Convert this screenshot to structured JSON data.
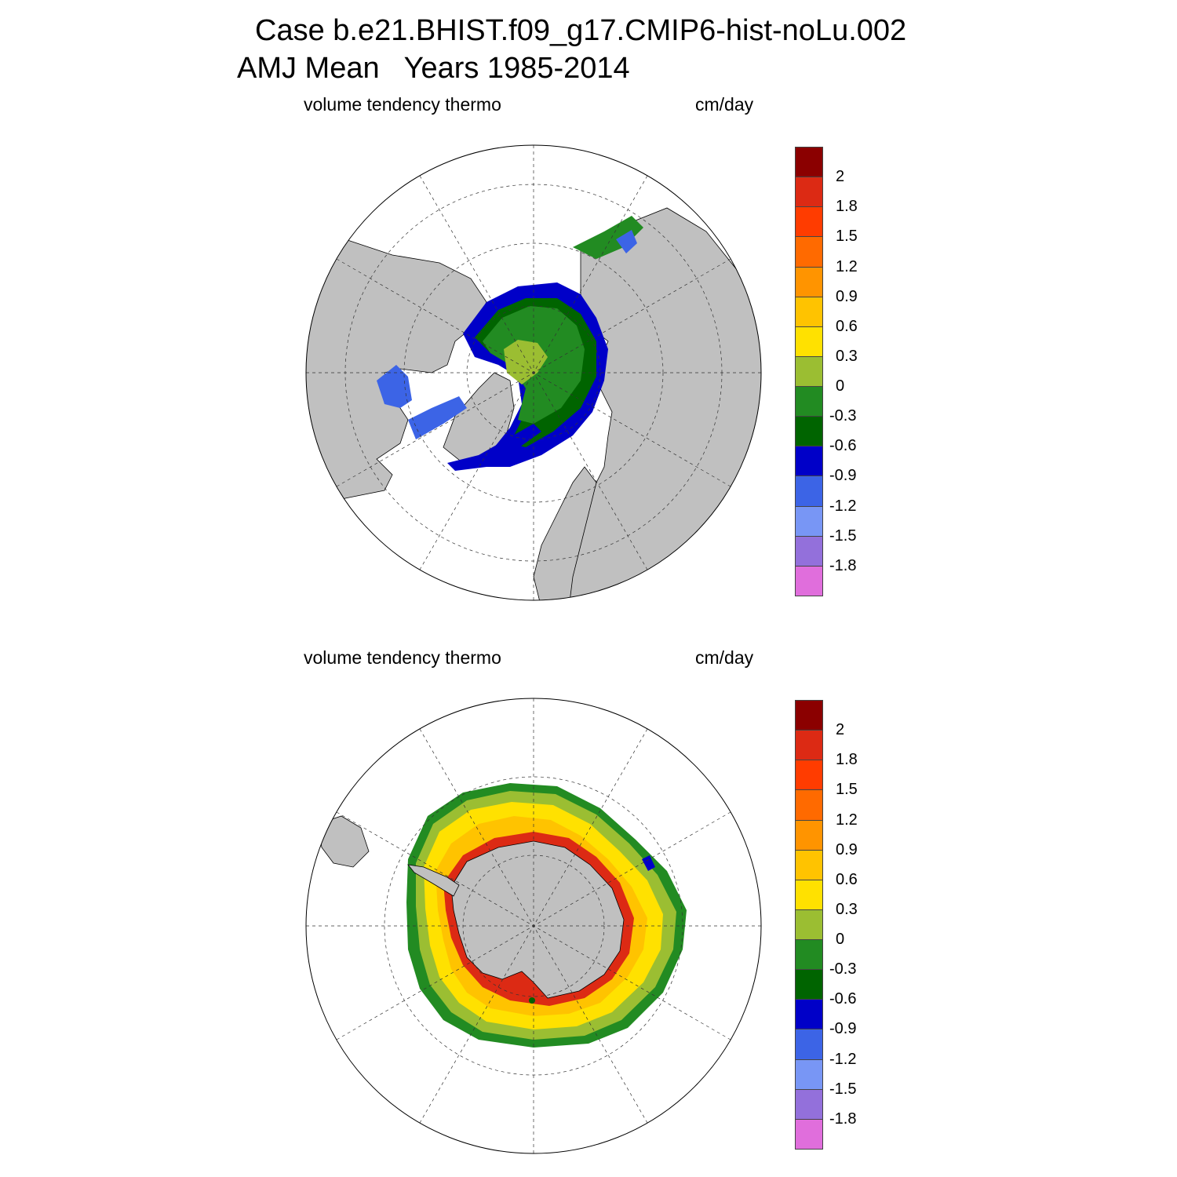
{
  "title_line1": "Case b.e21.BHIST.f09_g17.CMIP6-hist-noLu.002",
  "title_line2": "AMJ Mean   Years 1985-2014",
  "panels": [
    {
      "name": "arctic",
      "left_label": "volume tendency thermo",
      "right_label": "cm/day",
      "hemisphere": "north",
      "land_color": "#c0c0c0",
      "ocean_color": "#ffffff"
    },
    {
      "name": "antarctic",
      "left_label": "volume tendency thermo",
      "right_label": "cm/day",
      "hemisphere": "south",
      "land_color": "#c0c0c0",
      "ocean_color": "#ffffff"
    }
  ],
  "colorbar": {
    "colors_top_to_bottom": [
      "#8b0000",
      "#dc2a14",
      "#ff3c00",
      "#ff6a00",
      "#ff9400",
      "#ffc300",
      "#ffe100",
      "#9bbe32",
      "#228b22",
      "#006400",
      "#0000c8",
      "#3c64e6",
      "#7896f5",
      "#9370db",
      "#e06edc"
    ],
    "labels": [
      "2",
      "1.8",
      "1.5",
      "1.2",
      "0.9",
      "0.6",
      "0.3",
      "0",
      "-0.3",
      "-0.6",
      "-0.9",
      "-1.2",
      "-1.5",
      "-1.8"
    ]
  }
}
